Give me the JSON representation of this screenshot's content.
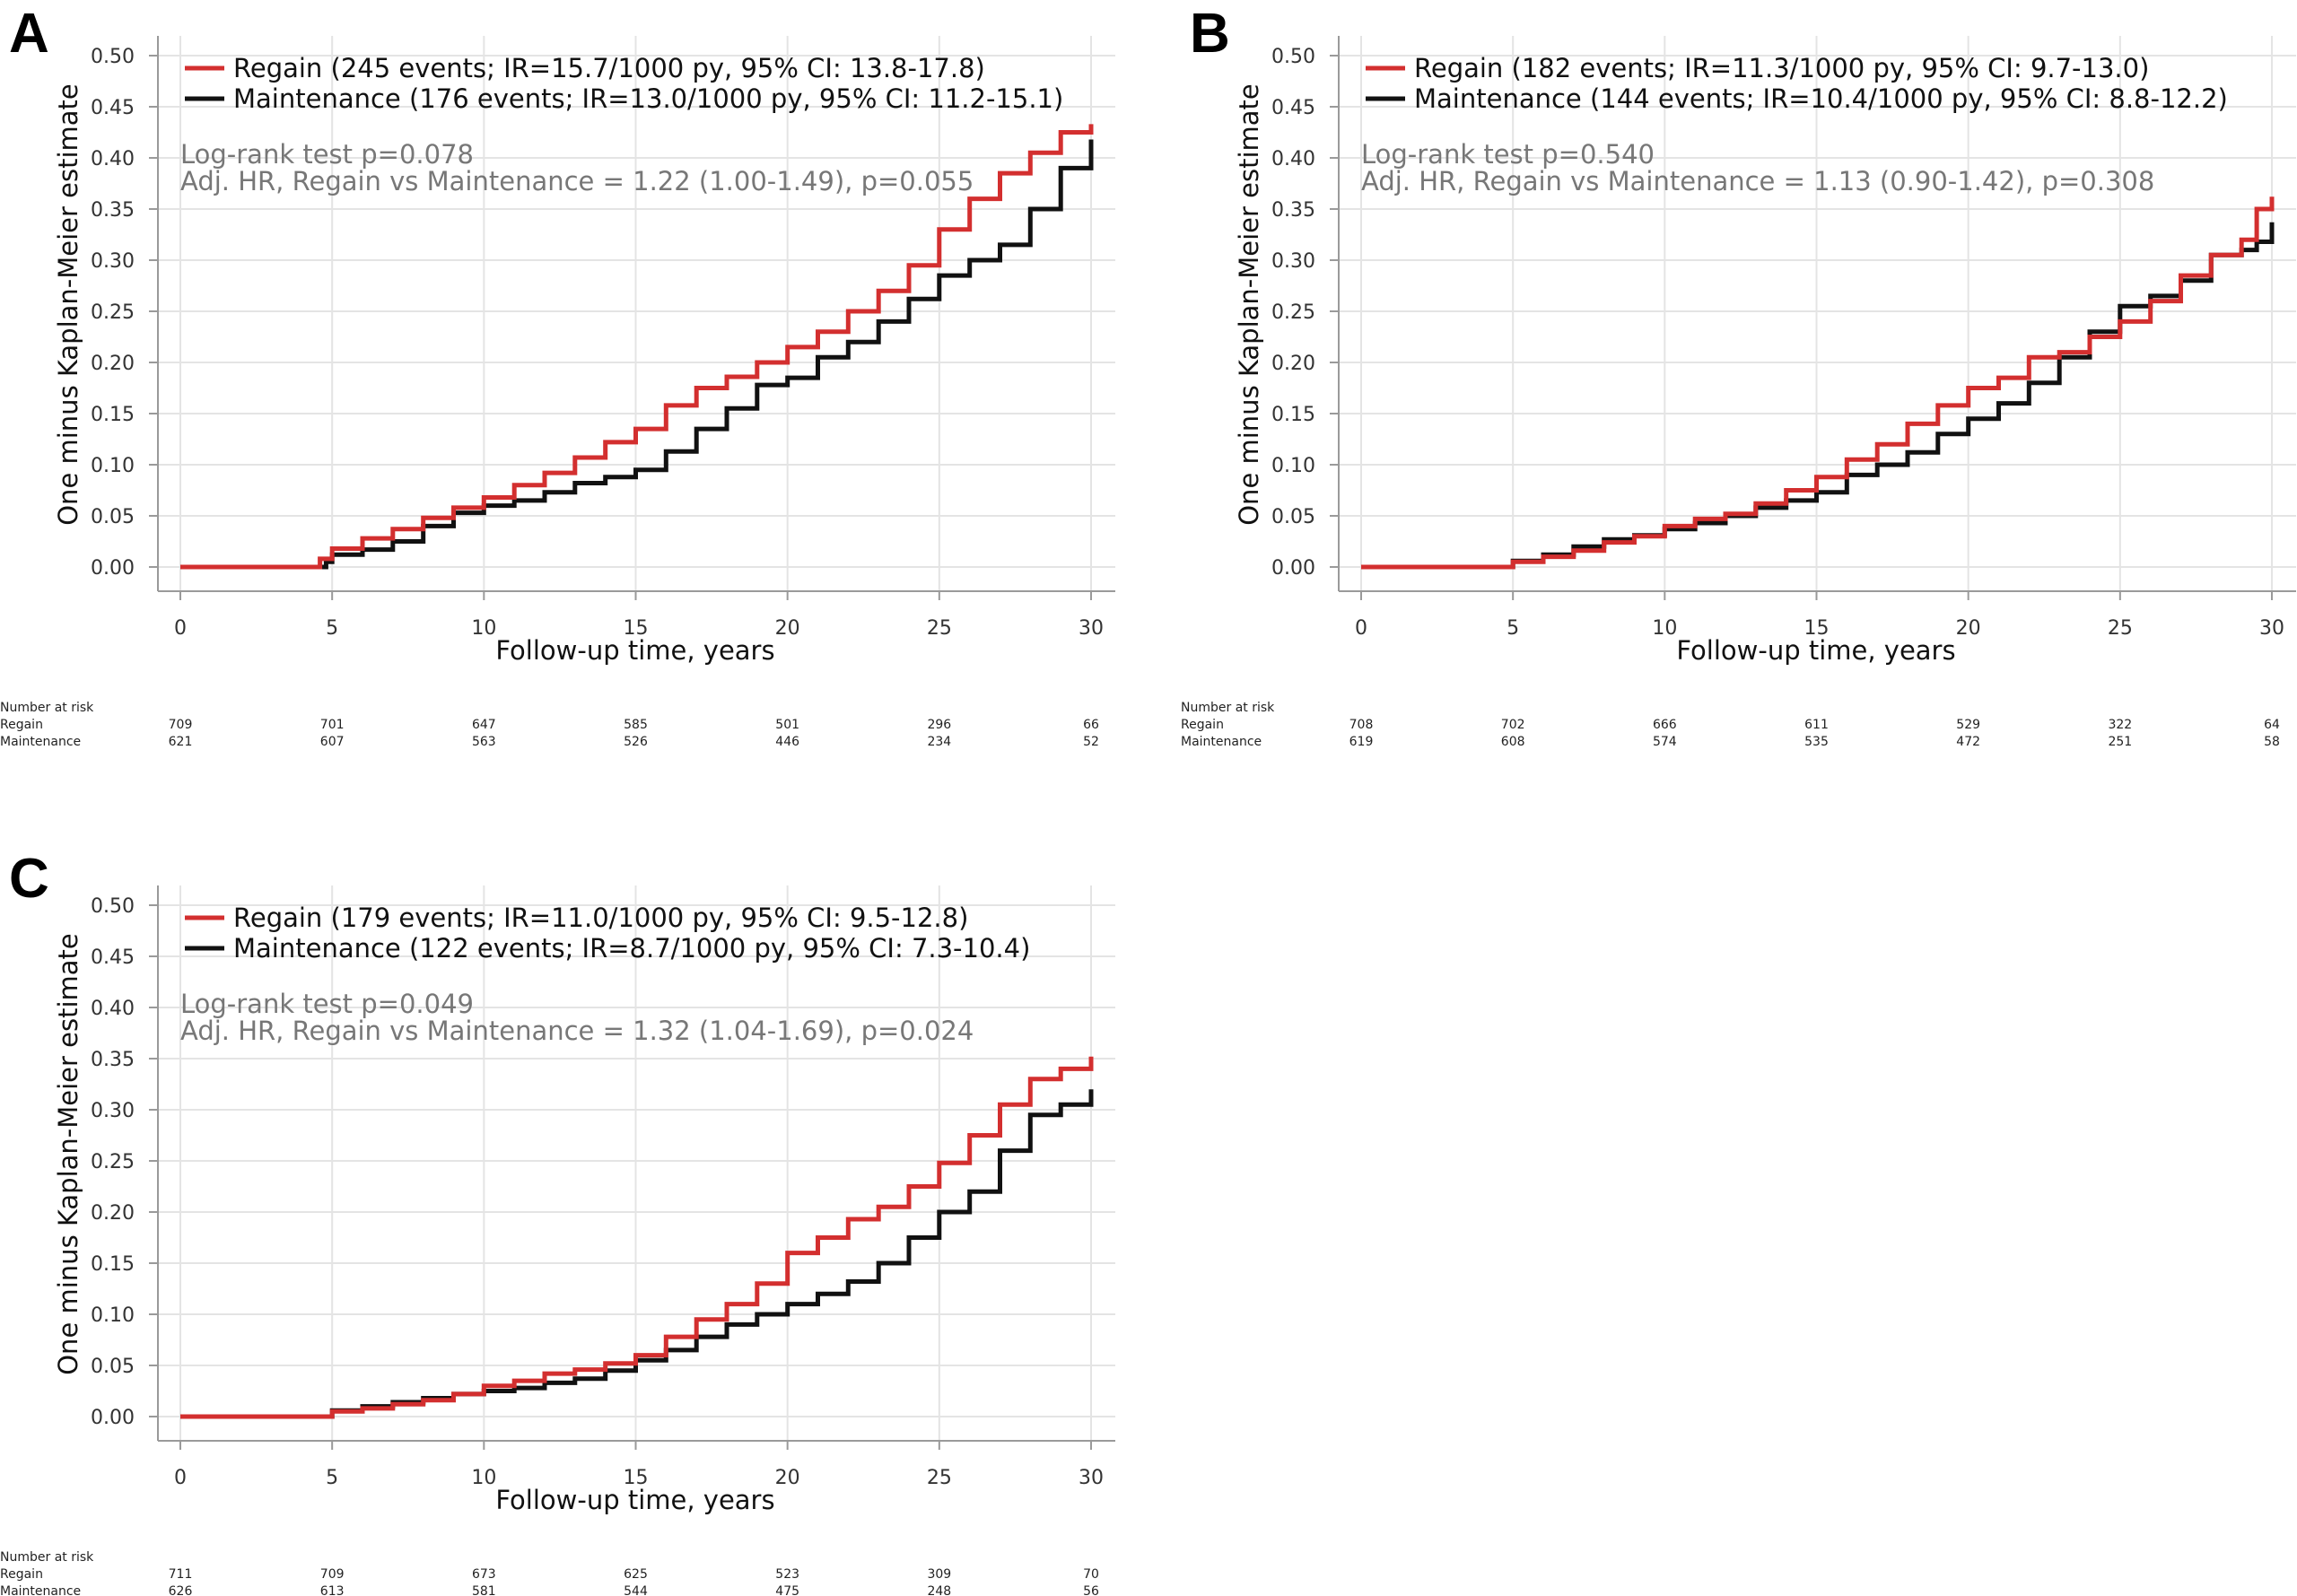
{
  "colors": {
    "regain": "#d32f2f",
    "maintenance": "#111111",
    "grid": "#e4e4e4"
  },
  "chart_data": [
    {
      "panel": "A",
      "type": "line",
      "ylabel": "One minus Kaplan-Meier estimate",
      "xlabel": "Follow-up time, years",
      "xlim": [
        0,
        30
      ],
      "ylim": [
        0,
        0.5
      ],
      "x_ticks": [
        "0",
        "5",
        "10",
        "15",
        "20",
        "25",
        "30"
      ],
      "y_ticks": [
        "0.00",
        "0.05",
        "0.10",
        "0.15",
        "0.20",
        "0.25",
        "0.30",
        "0.35",
        "0.40",
        "0.45",
        "0.50"
      ],
      "legend": [
        "Regain (245 events; IR=15.7/1000 py, 95% CI: 13.8-17.8)",
        "Maintenance (176 events; IR=13.0/1000 py, 95% CI: 11.2-15.1)"
      ],
      "stats": [
        "Log-rank test p=0.078",
        "Adj. HR, Regain vs Maintenance = 1.22 (1.00-1.49), p=0.055"
      ],
      "series": [
        {
          "name": "Regain",
          "x": [
            0,
            4.2,
            4.6,
            5,
            6,
            7,
            8,
            9,
            10,
            11,
            12,
            13,
            14,
            15,
            16,
            17,
            18,
            19,
            20,
            21,
            22,
            23,
            24,
            25,
            26,
            27,
            28,
            29,
            30
          ],
          "y": [
            0,
            0,
            0.008,
            0.018,
            0.028,
            0.037,
            0.048,
            0.058,
            0.068,
            0.08,
            0.092,
            0.107,
            0.122,
            0.135,
            0.158,
            0.175,
            0.186,
            0.2,
            0.215,
            0.23,
            0.25,
            0.27,
            0.295,
            0.33,
            0.36,
            0.385,
            0.405,
            0.425,
            0.433
          ]
        },
        {
          "name": "Maintenance",
          "x": [
            0,
            4.2,
            4.8,
            5,
            6,
            7,
            8,
            9,
            10,
            11,
            12,
            13,
            14,
            15,
            16,
            17,
            18,
            19,
            20,
            21,
            22,
            23,
            24,
            25,
            26,
            27,
            28,
            29,
            30
          ],
          "y": [
            0,
            0,
            0.005,
            0.012,
            0.017,
            0.025,
            0.04,
            0.053,
            0.06,
            0.065,
            0.073,
            0.082,
            0.088,
            0.095,
            0.113,
            0.135,
            0.155,
            0.178,
            0.185,
            0.205,
            0.22,
            0.24,
            0.262,
            0.285,
            0.3,
            0.315,
            0.35,
            0.39,
            0.418
          ]
        }
      ],
      "risk_table": {
        "title": "Number at risk",
        "rows": [
          {
            "label": "Regain",
            "values": [
              "709",
              "701",
              "647",
              "585",
              "501",
              "296",
              "66"
            ]
          },
          {
            "label": "Maintenance",
            "values": [
              "621",
              "607",
              "563",
              "526",
              "446",
              "234",
              "52"
            ]
          }
        ]
      }
    },
    {
      "panel": "B",
      "type": "line",
      "ylabel": "One minus Kaplan-Meier estimate",
      "xlabel": "Follow-up time, years",
      "xlim": [
        0,
        30
      ],
      "ylim": [
        0,
        0.5
      ],
      "x_ticks": [
        "0",
        "5",
        "10",
        "15",
        "20",
        "25",
        "30"
      ],
      "y_ticks": [
        "0.00",
        "0.05",
        "0.10",
        "0.15",
        "0.20",
        "0.25",
        "0.30",
        "0.35",
        "0.40",
        "0.45",
        "0.50"
      ],
      "legend": [
        "Regain (182 events; IR=11.3/1000 py, 95% CI: 9.7-13.0)",
        "Maintenance (144 events; IR=10.4/1000 py, 95% CI: 8.8-12.2)"
      ],
      "stats": [
        "Log-rank test p=0.540",
        "Adj. HR, Regain vs Maintenance = 1.13 (0.90-1.42), p=0.308"
      ],
      "series": [
        {
          "name": "Regain",
          "x": [
            0,
            4.0,
            5,
            6,
            7,
            8,
            9,
            10,
            11,
            12,
            13,
            14,
            15,
            16,
            17,
            18,
            19,
            20,
            21,
            22,
            23,
            24,
            25,
            26,
            27,
            28,
            29,
            29.5,
            30
          ],
          "y": [
            0,
            0,
            0.005,
            0.01,
            0.016,
            0.024,
            0.03,
            0.04,
            0.047,
            0.052,
            0.062,
            0.075,
            0.088,
            0.105,
            0.12,
            0.14,
            0.158,
            0.175,
            0.185,
            0.205,
            0.21,
            0.225,
            0.24,
            0.26,
            0.285,
            0.305,
            0.32,
            0.35,
            0.362
          ]
        },
        {
          "name": "Maintenance",
          "x": [
            0,
            4.0,
            5,
            6,
            7,
            8,
            9,
            10,
            11,
            12,
            13,
            14,
            15,
            16,
            17,
            18,
            19,
            20,
            21,
            22,
            23,
            24,
            25,
            26,
            27,
            28,
            29,
            29.5,
            30
          ],
          "y": [
            0,
            0,
            0.006,
            0.012,
            0.02,
            0.027,
            0.031,
            0.037,
            0.043,
            0.05,
            0.058,
            0.065,
            0.073,
            0.09,
            0.1,
            0.112,
            0.13,
            0.145,
            0.16,
            0.18,
            0.205,
            0.23,
            0.255,
            0.265,
            0.28,
            0.305,
            0.31,
            0.318,
            0.337
          ]
        }
      ],
      "risk_table": {
        "title": "Number at risk",
        "rows": [
          {
            "label": "Regain",
            "values": [
              "708",
              "702",
              "666",
              "611",
              "529",
              "322",
              "64"
            ]
          },
          {
            "label": "Maintenance",
            "values": [
              "619",
              "608",
              "574",
              "535",
              "472",
              "251",
              "58"
            ]
          }
        ]
      }
    },
    {
      "panel": "C",
      "type": "line",
      "ylabel": "One minus Kaplan-Meier estimate",
      "xlabel": "Follow-up time, years",
      "xlim": [
        0,
        30
      ],
      "ylim": [
        0,
        0.5
      ],
      "x_ticks": [
        "0",
        "5",
        "10",
        "15",
        "20",
        "25",
        "30"
      ],
      "y_ticks": [
        "0.00",
        "0.05",
        "0.10",
        "0.15",
        "0.20",
        "0.25",
        "0.30",
        "0.35",
        "0.40",
        "0.45",
        "0.50"
      ],
      "legend": [
        "Regain (179 events; IR=11.0/1000 py, 95% CI: 9.5-12.8)",
        "Maintenance (122 events; IR=8.7/1000 py, 95% CI: 7.3-10.4)"
      ],
      "stats": [
        "Log-rank test p=0.049",
        "Adj. HR, Regain vs Maintenance = 1.32 (1.04-1.69), p=0.024"
      ],
      "series": [
        {
          "name": "Regain",
          "x": [
            0,
            4.8,
            5,
            6,
            7,
            8,
            9,
            10,
            11,
            12,
            13,
            14,
            15,
            16,
            17,
            18,
            19,
            20,
            21,
            22,
            23,
            24,
            25,
            26,
            27,
            28,
            29,
            30
          ],
          "y": [
            0,
            0,
            0.005,
            0.008,
            0.012,
            0.016,
            0.022,
            0.03,
            0.035,
            0.042,
            0.046,
            0.052,
            0.06,
            0.078,
            0.095,
            0.11,
            0.13,
            0.16,
            0.175,
            0.193,
            0.205,
            0.225,
            0.248,
            0.275,
            0.305,
            0.33,
            0.34,
            0.352
          ]
        },
        {
          "name": "Maintenance",
          "x": [
            0,
            4.8,
            5,
            6,
            7,
            8,
            9,
            10,
            11,
            12,
            13,
            14,
            15,
            16,
            17,
            18,
            19,
            20,
            21,
            22,
            23,
            24,
            25,
            26,
            27,
            28,
            29,
            30
          ],
          "y": [
            0,
            0,
            0.006,
            0.01,
            0.014,
            0.018,
            0.022,
            0.025,
            0.028,
            0.033,
            0.037,
            0.045,
            0.055,
            0.065,
            0.078,
            0.09,
            0.1,
            0.11,
            0.12,
            0.132,
            0.15,
            0.175,
            0.2,
            0.22,
            0.26,
            0.295,
            0.305,
            0.32
          ]
        }
      ],
      "risk_table": {
        "title": "Number at risk",
        "rows": [
          {
            "label": "Regain",
            "values": [
              "711",
              "709",
              "673",
              "625",
              "523",
              "309",
              "70"
            ]
          },
          {
            "label": "Maintenance",
            "values": [
              "626",
              "613",
              "581",
              "544",
              "475",
              "248",
              "56"
            ]
          }
        ]
      }
    }
  ]
}
